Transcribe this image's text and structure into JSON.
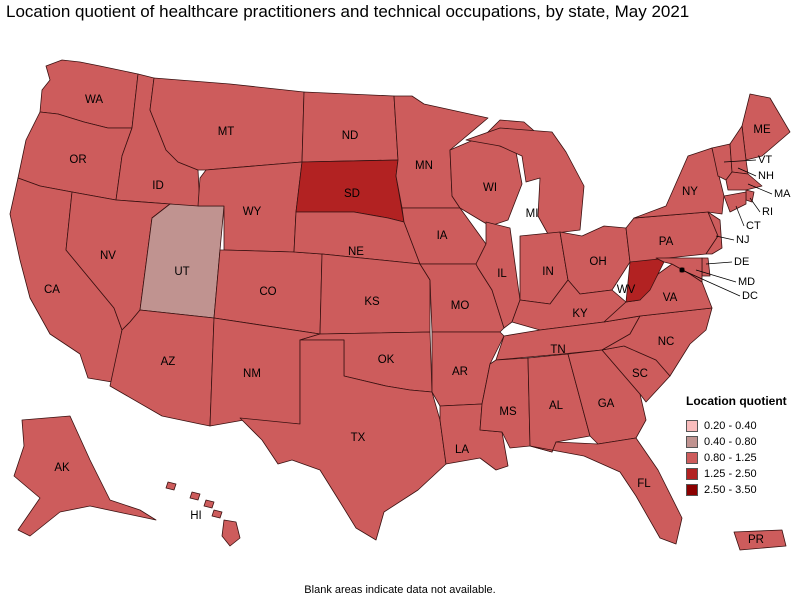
{
  "title": "Location quotient of healthcare practitioners and technical occupations, by state, May 2021",
  "footnote": "Blank areas indicate data not available.",
  "legend": {
    "title": "Location quotient",
    "items": [
      {
        "range": "0.20 - 0.40",
        "color": "#f8bcbc"
      },
      {
        "range": "0.40 - 0.80",
        "color": "#c09390"
      },
      {
        "range": "0.80 - 1.25",
        "color": "#cd5c5c"
      },
      {
        "range": "1.25 - 2.50",
        "color": "#b22222"
      },
      {
        "range": "2.50 - 3.50",
        "color": "#8b0000"
      }
    ]
  },
  "states": [
    {
      "abbr": "WA",
      "class": "0.80 - 1.25"
    },
    {
      "abbr": "OR",
      "class": "0.80 - 1.25"
    },
    {
      "abbr": "CA",
      "class": "0.80 - 1.25"
    },
    {
      "abbr": "ID",
      "class": "0.80 - 1.25"
    },
    {
      "abbr": "NV",
      "class": "0.80 - 1.25"
    },
    {
      "abbr": "UT",
      "class": "0.40 - 0.80"
    },
    {
      "abbr": "AZ",
      "class": "0.80 - 1.25"
    },
    {
      "abbr": "MT",
      "class": "0.80 - 1.25"
    },
    {
      "abbr": "WY",
      "class": "0.80 - 1.25"
    },
    {
      "abbr": "CO",
      "class": "0.80 - 1.25"
    },
    {
      "abbr": "NM",
      "class": "0.80 - 1.25"
    },
    {
      "abbr": "ND",
      "class": "0.80 - 1.25"
    },
    {
      "abbr": "SD",
      "class": "1.25 - 2.50"
    },
    {
      "abbr": "NE",
      "class": "0.80 - 1.25"
    },
    {
      "abbr": "KS",
      "class": "0.80 - 1.25"
    },
    {
      "abbr": "OK",
      "class": "0.80 - 1.25"
    },
    {
      "abbr": "TX",
      "class": "0.80 - 1.25"
    },
    {
      "abbr": "MN",
      "class": "0.80 - 1.25"
    },
    {
      "abbr": "IA",
      "class": "0.80 - 1.25"
    },
    {
      "abbr": "MO",
      "class": "0.80 - 1.25"
    },
    {
      "abbr": "AR",
      "class": "0.80 - 1.25"
    },
    {
      "abbr": "LA",
      "class": "0.80 - 1.25"
    },
    {
      "abbr": "WI",
      "class": "0.80 - 1.25"
    },
    {
      "abbr": "IL",
      "class": "0.80 - 1.25"
    },
    {
      "abbr": "MI",
      "class": "0.80 - 1.25"
    },
    {
      "abbr": "IN",
      "class": "0.80 - 1.25"
    },
    {
      "abbr": "OH",
      "class": "0.80 - 1.25"
    },
    {
      "abbr": "KY",
      "class": "0.80 - 1.25"
    },
    {
      "abbr": "TN",
      "class": "0.80 - 1.25"
    },
    {
      "abbr": "MS",
      "class": "0.80 - 1.25"
    },
    {
      "abbr": "AL",
      "class": "0.80 - 1.25"
    },
    {
      "abbr": "GA",
      "class": "0.80 - 1.25"
    },
    {
      "abbr": "FL",
      "class": "0.80 - 1.25"
    },
    {
      "abbr": "SC",
      "class": "0.80 - 1.25"
    },
    {
      "abbr": "NC",
      "class": "0.80 - 1.25"
    },
    {
      "abbr": "VA",
      "class": "0.80 - 1.25"
    },
    {
      "abbr": "WV",
      "class": "1.25 - 2.50"
    },
    {
      "abbr": "PA",
      "class": "0.80 - 1.25"
    },
    {
      "abbr": "NY",
      "class": "0.80 - 1.25"
    },
    {
      "abbr": "ME",
      "class": "0.80 - 1.25"
    },
    {
      "abbr": "VT",
      "class": "0.80 - 1.25"
    },
    {
      "abbr": "NH",
      "class": "0.80 - 1.25"
    },
    {
      "abbr": "MA",
      "class": "0.80 - 1.25"
    },
    {
      "abbr": "RI",
      "class": "0.80 - 1.25"
    },
    {
      "abbr": "CT",
      "class": "0.80 - 1.25"
    },
    {
      "abbr": "NJ",
      "class": "0.80 - 1.25"
    },
    {
      "abbr": "DE",
      "class": "0.80 - 1.25"
    },
    {
      "abbr": "MD",
      "class": "0.80 - 1.25"
    },
    {
      "abbr": "DC",
      "class": "0.80 - 1.25"
    },
    {
      "abbr": "AK",
      "class": "0.80 - 1.25"
    },
    {
      "abbr": "HI",
      "class": "0.80 - 1.25"
    },
    {
      "abbr": "PR",
      "class": "0.80 - 1.25"
    }
  ]
}
